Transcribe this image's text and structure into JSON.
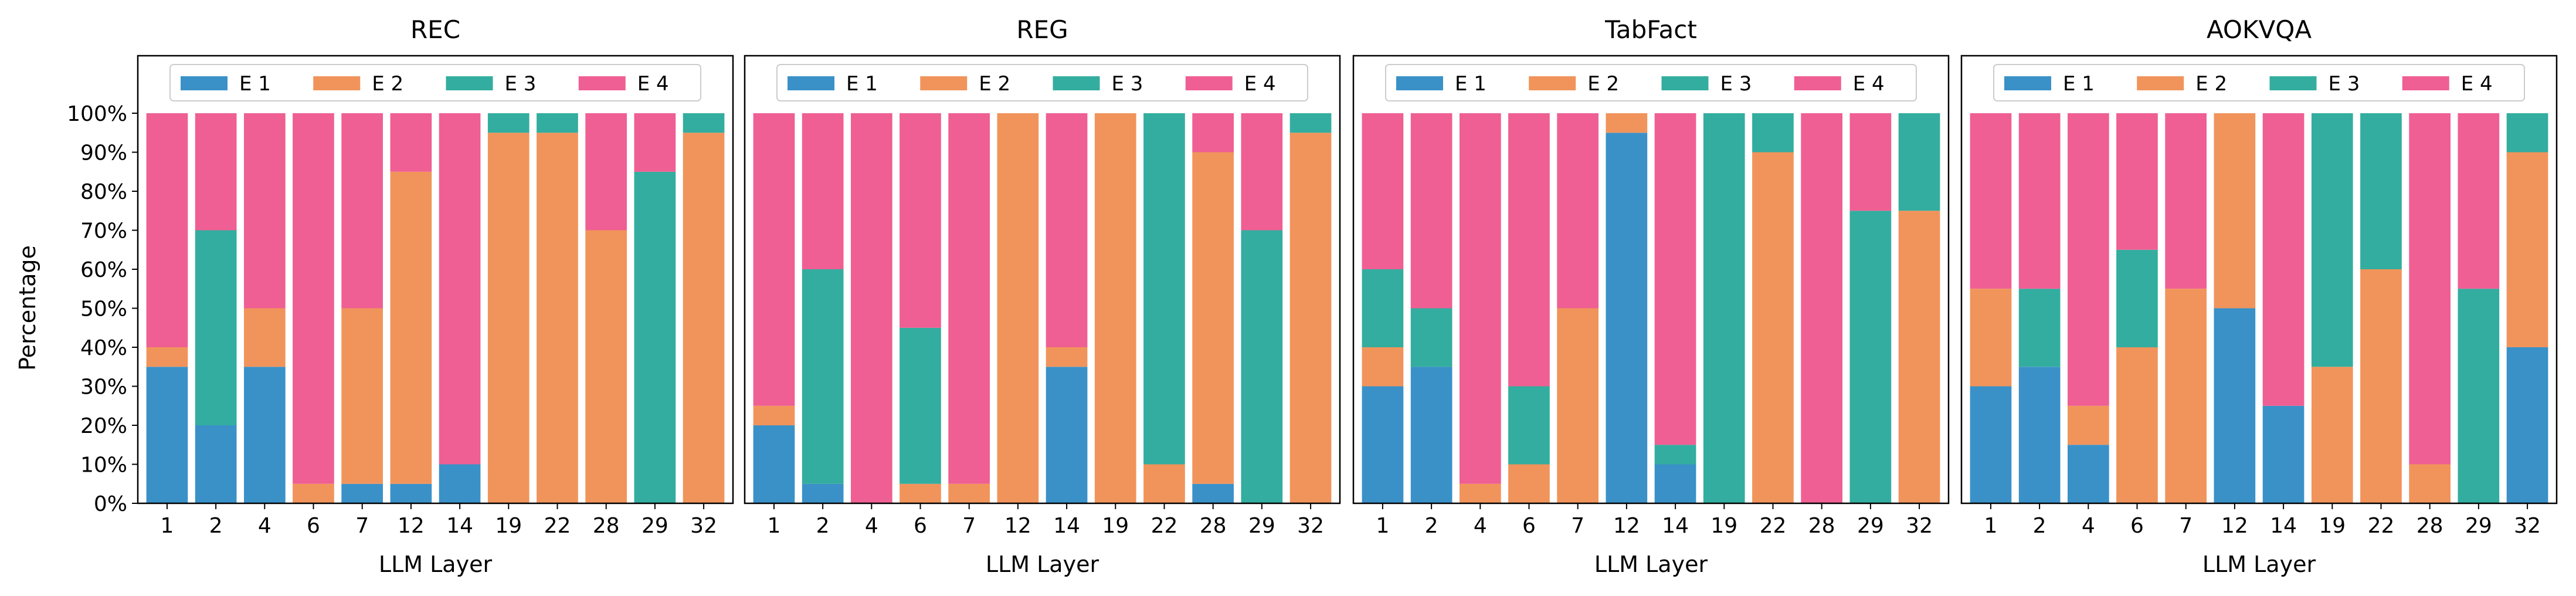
{
  "figure": {
    "ylabel": "Percentage",
    "xlabel": "LLM Layer"
  },
  "colors": {
    "E 1": "#3a91c8",
    "E 2": "#f1945b",
    "E 3": "#33ad9f",
    "E 4": "#ef5f93"
  },
  "chart_data": [
    {
      "type": "bar",
      "stacked": true,
      "title": "REC",
      "xlabel": "LLM Layer",
      "ylabel": "Percentage",
      "ylim": [
        0,
        100
      ],
      "yticks": [
        "0%",
        "10%",
        "20%",
        "30%",
        "40%",
        "50%",
        "60%",
        "70%",
        "80%",
        "90%",
        "100%"
      ],
      "legend": "top",
      "categories": [
        "1",
        "2",
        "4",
        "6",
        "7",
        "12",
        "14",
        "19",
        "22",
        "28",
        "29",
        "32"
      ],
      "series": [
        {
          "name": "E 1",
          "values": [
            35,
            20,
            35,
            0,
            5,
            5,
            10,
            0,
            0,
            0,
            0,
            0
          ]
        },
        {
          "name": "E 2",
          "values": [
            5,
            0,
            15,
            5,
            45,
            80,
            0,
            95,
            95,
            70,
            0,
            95
          ]
        },
        {
          "name": "E 3",
          "values": [
            0,
            50,
            0,
            0,
            0,
            0,
            0,
            5,
            5,
            0,
            85,
            5
          ]
        },
        {
          "name": "E 4",
          "values": [
            60,
            30,
            50,
            95,
            50,
            15,
            90,
            0,
            0,
            30,
            15,
            0
          ]
        }
      ]
    },
    {
      "type": "bar",
      "stacked": true,
      "title": "REG",
      "xlabel": "LLM Layer",
      "ylim": [
        0,
        100
      ],
      "legend": "top",
      "categories": [
        "1",
        "2",
        "4",
        "6",
        "7",
        "12",
        "14",
        "19",
        "22",
        "28",
        "29",
        "32"
      ],
      "series": [
        {
          "name": "E 1",
          "values": [
            20,
            5,
            0,
            0,
            0,
            0,
            35,
            0,
            0,
            5,
            0,
            0
          ]
        },
        {
          "name": "E 2",
          "values": [
            5,
            0,
            0,
            5,
            5,
            100,
            5,
            100,
            10,
            85,
            0,
            95
          ]
        },
        {
          "name": "E 3",
          "values": [
            0,
            55,
            0,
            40,
            0,
            0,
            0,
            0,
            90,
            0,
            70,
            5
          ]
        },
        {
          "name": "E 4",
          "values": [
            75,
            40,
            100,
            55,
            95,
            0,
            60,
            0,
            0,
            10,
            30,
            0
          ]
        }
      ]
    },
    {
      "type": "bar",
      "stacked": true,
      "title": "TabFact",
      "xlabel": "LLM Layer",
      "ylim": [
        0,
        100
      ],
      "legend": "top",
      "categories": [
        "1",
        "2",
        "4",
        "6",
        "7",
        "12",
        "14",
        "19",
        "22",
        "28",
        "29",
        "32"
      ],
      "series": [
        {
          "name": "E 1",
          "values": [
            30,
            35,
            0,
            0,
            0,
            95,
            10,
            0,
            0,
            0,
            0,
            0
          ]
        },
        {
          "name": "E 2",
          "values": [
            10,
            0,
            5,
            10,
            50,
            5,
            0,
            0,
            90,
            0,
            0,
            75
          ]
        },
        {
          "name": "E 3",
          "values": [
            20,
            15,
            0,
            20,
            0,
            0,
            5,
            100,
            10,
            0,
            75,
            25
          ]
        },
        {
          "name": "E 4",
          "values": [
            40,
            50,
            95,
            70,
            50,
            0,
            85,
            0,
            0,
            100,
            25,
            0
          ]
        }
      ]
    },
    {
      "type": "bar",
      "stacked": true,
      "title": "AOKVQA",
      "xlabel": "LLM Layer",
      "ylim": [
        0,
        100
      ],
      "legend": "top",
      "categories": [
        "1",
        "2",
        "4",
        "6",
        "7",
        "12",
        "14",
        "19",
        "22",
        "28",
        "29",
        "32"
      ],
      "series": [
        {
          "name": "E 1",
          "values": [
            30,
            35,
            15,
            0,
            0,
            50,
            25,
            0,
            0,
            0,
            0,
            40
          ]
        },
        {
          "name": "E 2",
          "values": [
            25,
            0,
            10,
            40,
            55,
            50,
            0,
            35,
            60,
            10,
            0,
            50
          ]
        },
        {
          "name": "E 3",
          "values": [
            0,
            20,
            0,
            25,
            0,
            0,
            0,
            65,
            40,
            0,
            55,
            10
          ]
        },
        {
          "name": "E 4",
          "values": [
            45,
            45,
            75,
            35,
            45,
            0,
            75,
            0,
            0,
            90,
            45,
            0
          ]
        }
      ]
    }
  ]
}
